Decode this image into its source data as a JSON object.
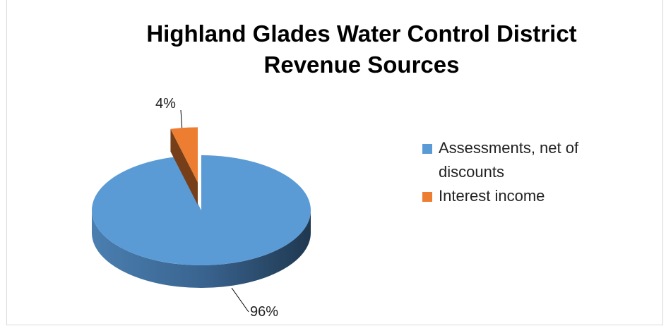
{
  "chart_data": {
    "type": "pie",
    "title": "Highland Glades Water Control District Revenue Sources",
    "categories": [
      "Assessments, net of discounts",
      "Interest income"
    ],
    "values": [
      96,
      4
    ],
    "value_labels": [
      "96%",
      "4%"
    ],
    "colors": [
      "#5b9bd5",
      "#ed7d31"
    ],
    "legend": "right"
  }
}
